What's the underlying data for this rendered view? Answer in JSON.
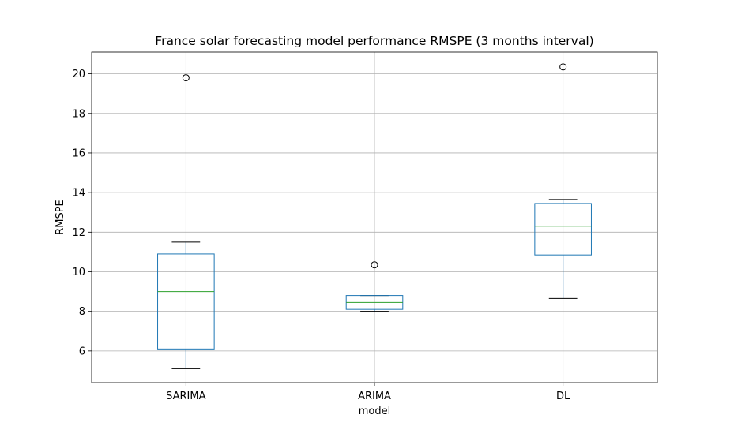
{
  "chart_data": {
    "type": "box",
    "title": "France solar forecasting model performance RMSPE (3 months interval)",
    "xlabel": "model",
    "ylabel": "RMSPE",
    "ylim": [
      4.4,
      21.1
    ],
    "yticks": [
      6,
      8,
      10,
      12,
      14,
      16,
      18,
      20
    ],
    "grid": true,
    "categories": [
      "SARIMA",
      "ARIMA",
      "DL"
    ],
    "boxes": [
      {
        "category": "SARIMA",
        "whisker_low": 5.1,
        "q1": 6.1,
        "median": 9.0,
        "q3": 10.9,
        "whisker_high": 11.5,
        "outliers": [
          19.8
        ]
      },
      {
        "category": "ARIMA",
        "whisker_low": 8.0,
        "q1": 8.1,
        "median": 8.45,
        "q3": 8.8,
        "whisker_high": 8.8,
        "outliers": [
          10.35
        ]
      },
      {
        "category": "DL",
        "whisker_low": 8.65,
        "q1": 10.85,
        "median": 12.3,
        "q3": 13.45,
        "whisker_high": 13.65,
        "outliers": [
          20.35
        ]
      }
    ],
    "colors": {
      "box": "#1f77b4",
      "median": "#2ca02c",
      "whisker_cap": "#000000",
      "grid": "#b0b0b0",
      "flier_edge": "#000000"
    }
  }
}
